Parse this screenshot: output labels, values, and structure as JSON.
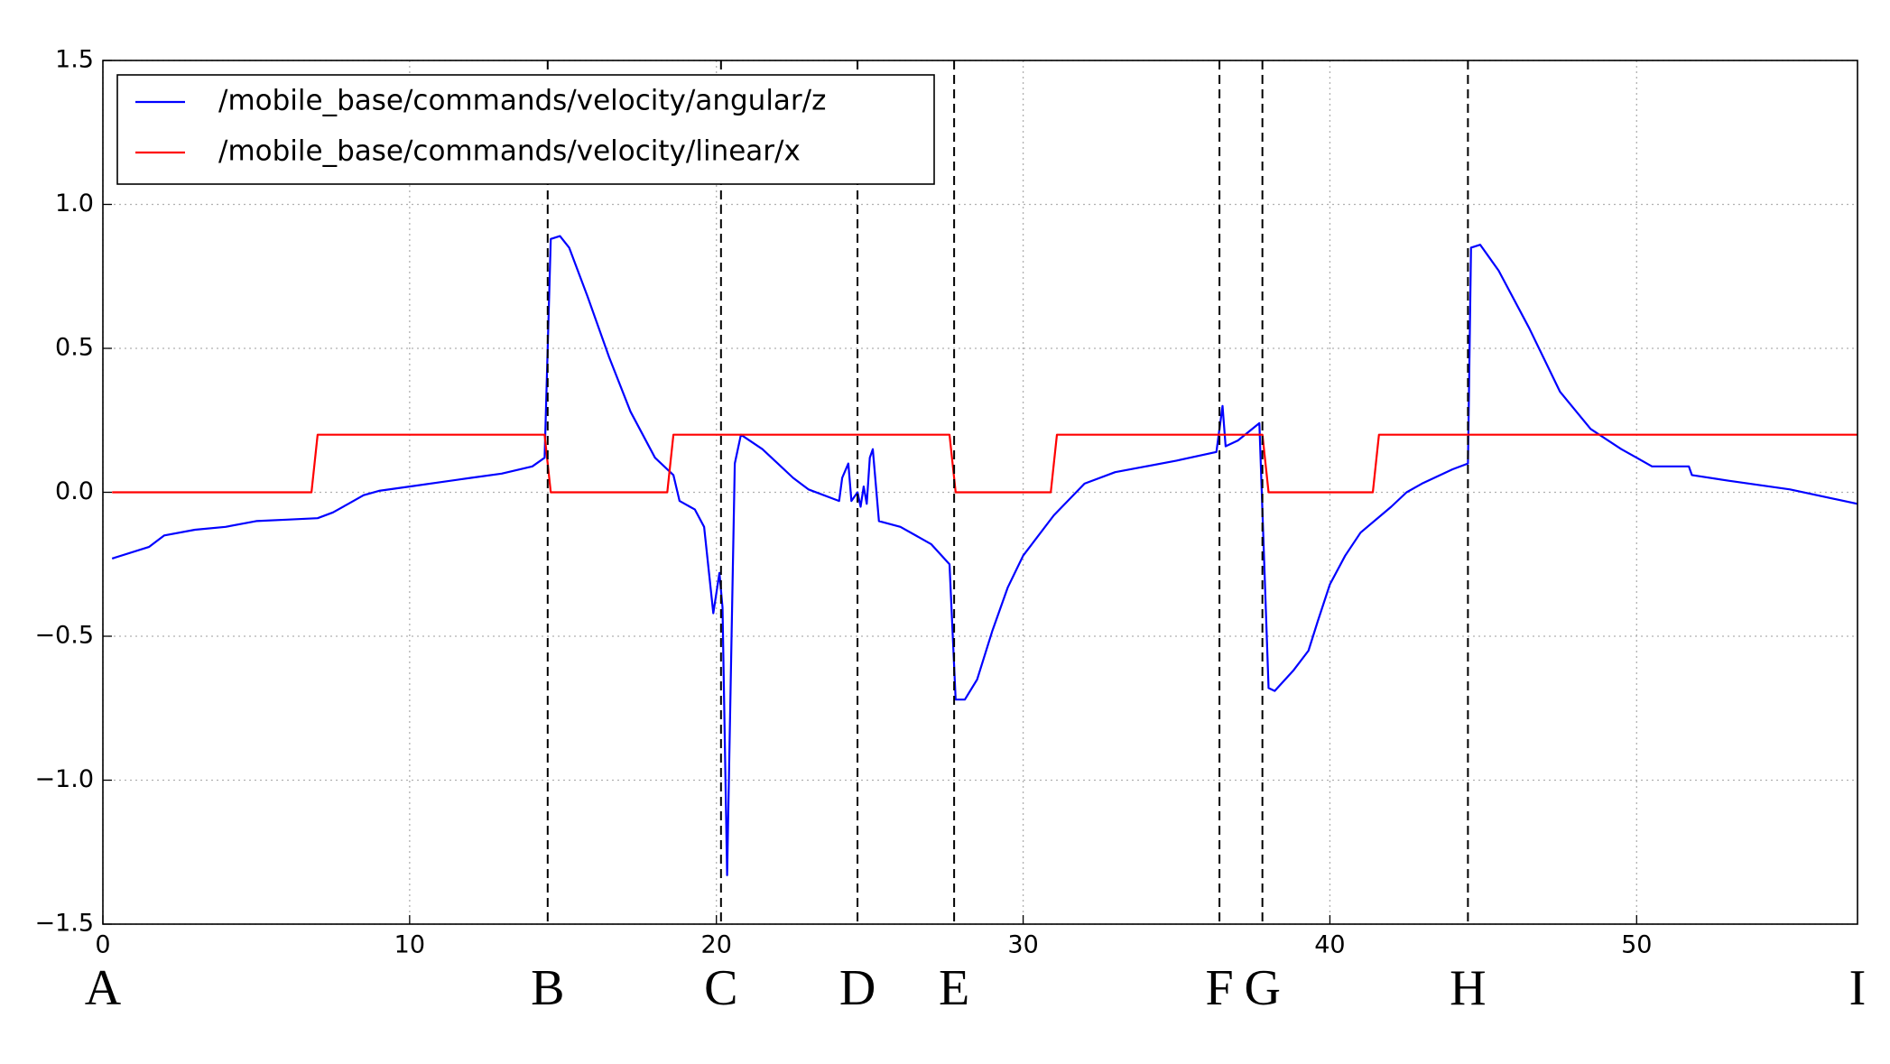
{
  "chart_data": {
    "type": "line",
    "xlim": [
      0,
      57.2
    ],
    "ylim": [
      -1.5,
      1.5
    ],
    "xticks": [
      0,
      10,
      20,
      30,
      40,
      50
    ],
    "yticks": [
      {
        "value": -1.5,
        "label": "−1.5"
      },
      {
        "value": -1.0,
        "label": "−1.0"
      },
      {
        "value": -0.5,
        "label": "−0.5"
      },
      {
        "value": 0.0,
        "label": "0.0"
      },
      0.5,
      {
        "value": 1.0,
        "label": "1.0"
      },
      1.5
    ],
    "grid": true,
    "legend": "upper left",
    "series": [
      {
        "name": "/mobile_base/commands/velocity/angular/z",
        "color": "#0000ff",
        "x": [
          0.3,
          1.5,
          2,
          3,
          4,
          5,
          6,
          7,
          7.5,
          8,
          8.5,
          9,
          10,
          11,
          12,
          13,
          14,
          14.4,
          14.6,
          14.9,
          15.2,
          15.8,
          16.5,
          17.2,
          18,
          18.6,
          18.8,
          19.3,
          19.6,
          19.9,
          20.1,
          20.2,
          20.35,
          20.6,
          20.8,
          21.5,
          22,
          22.5,
          23,
          24,
          24.1,
          24.3,
          24.4,
          24.6,
          24.7,
          24.8,
          24.9,
          25.0,
          25.1,
          25.3,
          26,
          27,
          27.6,
          27.8,
          28.1,
          28.5,
          29,
          29.5,
          30,
          31,
          32,
          33,
          34,
          35,
          36.3,
          36.5,
          36.6,
          37.0,
          37.7,
          38.0,
          38.2,
          38.8,
          39.3,
          39.6,
          40,
          40.5,
          41,
          42,
          42.5,
          43,
          44,
          44.5,
          44.6,
          44.9,
          45.5,
          46.5,
          47.5,
          48.5,
          49.5,
          50,
          50.5,
          51.7,
          51.8,
          53,
          55,
          57.2
        ],
        "values": [
          -0.23,
          -0.19,
          -0.15,
          -0.13,
          -0.12,
          -0.1,
          -0.095,
          -0.09,
          -0.07,
          -0.04,
          -0.01,
          0.005,
          0.02,
          0.035,
          0.05,
          0.065,
          0.09,
          0.12,
          0.88,
          0.89,
          0.85,
          0.68,
          0.47,
          0.28,
          0.12,
          0.06,
          -0.03,
          -0.06,
          -0.12,
          -0.42,
          -0.28,
          -0.4,
          -1.33,
          0.1,
          0.2,
          0.15,
          0.1,
          0.05,
          0.01,
          -0.03,
          0.05,
          0.1,
          -0.03,
          0.0,
          -0.05,
          0.02,
          -0.04,
          0.12,
          0.15,
          -0.1,
          -0.12,
          -0.18,
          -0.25,
          -0.72,
          -0.72,
          -0.65,
          -0.48,
          -0.33,
          -0.22,
          -0.08,
          0.03,
          0.07,
          0.09,
          0.11,
          0.14,
          0.3,
          0.16,
          0.18,
          0.24,
          -0.68,
          -0.69,
          -0.62,
          -0.55,
          -0.45,
          -0.32,
          -0.22,
          -0.14,
          -0.05,
          0.0,
          0.03,
          0.08,
          0.1,
          0.85,
          0.86,
          0.77,
          0.57,
          0.35,
          0.22,
          0.15,
          0.12,
          0.09,
          0.09,
          0.06,
          0.04,
          0.01,
          -0.04
        ]
      },
      {
        "name": "/mobile_base/commands/velocity/linear/x",
        "color": "#ff0000",
        "x": [
          0.3,
          6.8,
          7.0,
          14.4,
          14.6,
          18.4,
          18.6,
          27.6,
          27.8,
          30.9,
          31.1,
          37.8,
          38.0,
          41.4,
          41.6,
          57.2
        ],
        "values": [
          0,
          0,
          0.2,
          0.2,
          0,
          0,
          0.2,
          0.2,
          0,
          0,
          0.2,
          0.2,
          0,
          0,
          0.2,
          0.2
        ]
      }
    ],
    "markers": [
      {
        "label": "A",
        "x": 0
      },
      {
        "label": "B",
        "x": 14.5
      },
      {
        "label": "C",
        "x": 20.15
      },
      {
        "label": "D",
        "x": 24.6
      },
      {
        "label": "E",
        "x": 27.75
      },
      {
        "label": "F",
        "x": 36.4
      },
      {
        "label": "G",
        "x": 37.8
      },
      {
        "label": "H",
        "x": 44.5
      },
      {
        "label": "I",
        "x": 57.2
      }
    ]
  }
}
